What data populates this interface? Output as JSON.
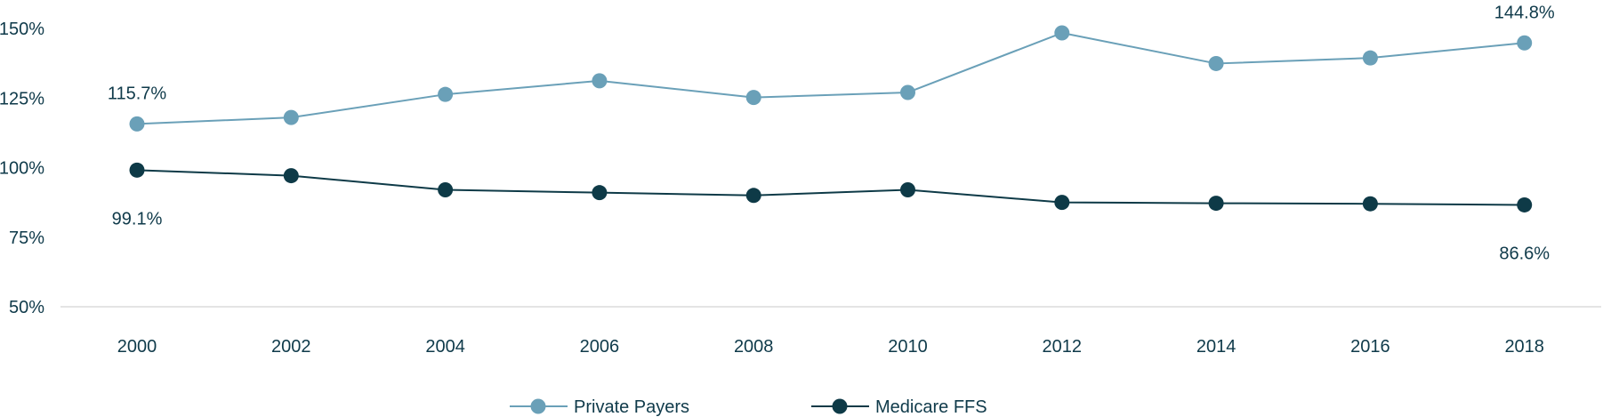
{
  "chart_data": {
    "type": "line",
    "x": [
      "2000",
      "2002",
      "2004",
      "2006",
      "2008",
      "2010",
      "2012",
      "2014",
      "2016",
      "2018"
    ],
    "series": [
      {
        "name": "Private Payers",
        "color": "#6aa0b8",
        "values": [
          115.7,
          118.0,
          126.3,
          131.2,
          125.2,
          127.0,
          148.4,
          137.4,
          139.4,
          144.8
        ],
        "labels": [
          {
            "index": 0,
            "text": "115.7%",
            "position": "above"
          },
          {
            "index": 9,
            "text": "144.8%",
            "position": "above"
          }
        ]
      },
      {
        "name": "Medicare FFS",
        "color": "#0e3a47",
        "values": [
          99.1,
          97.1,
          92.0,
          91.0,
          90.0,
          92.0,
          87.5,
          87.2,
          87.0,
          86.6
        ],
        "labels": [
          {
            "index": 0,
            "text": "99.1%",
            "position": "below"
          },
          {
            "index": 9,
            "text": "86.6%",
            "position": "below"
          }
        ]
      }
    ],
    "y_ticks": [
      "50%",
      "75%",
      "100%",
      "125%",
      "150%"
    ],
    "ylim": [
      50,
      150
    ],
    "grid": false,
    "legend": "bottom-center",
    "title": "",
    "xlabel": "",
    "ylabel": ""
  }
}
